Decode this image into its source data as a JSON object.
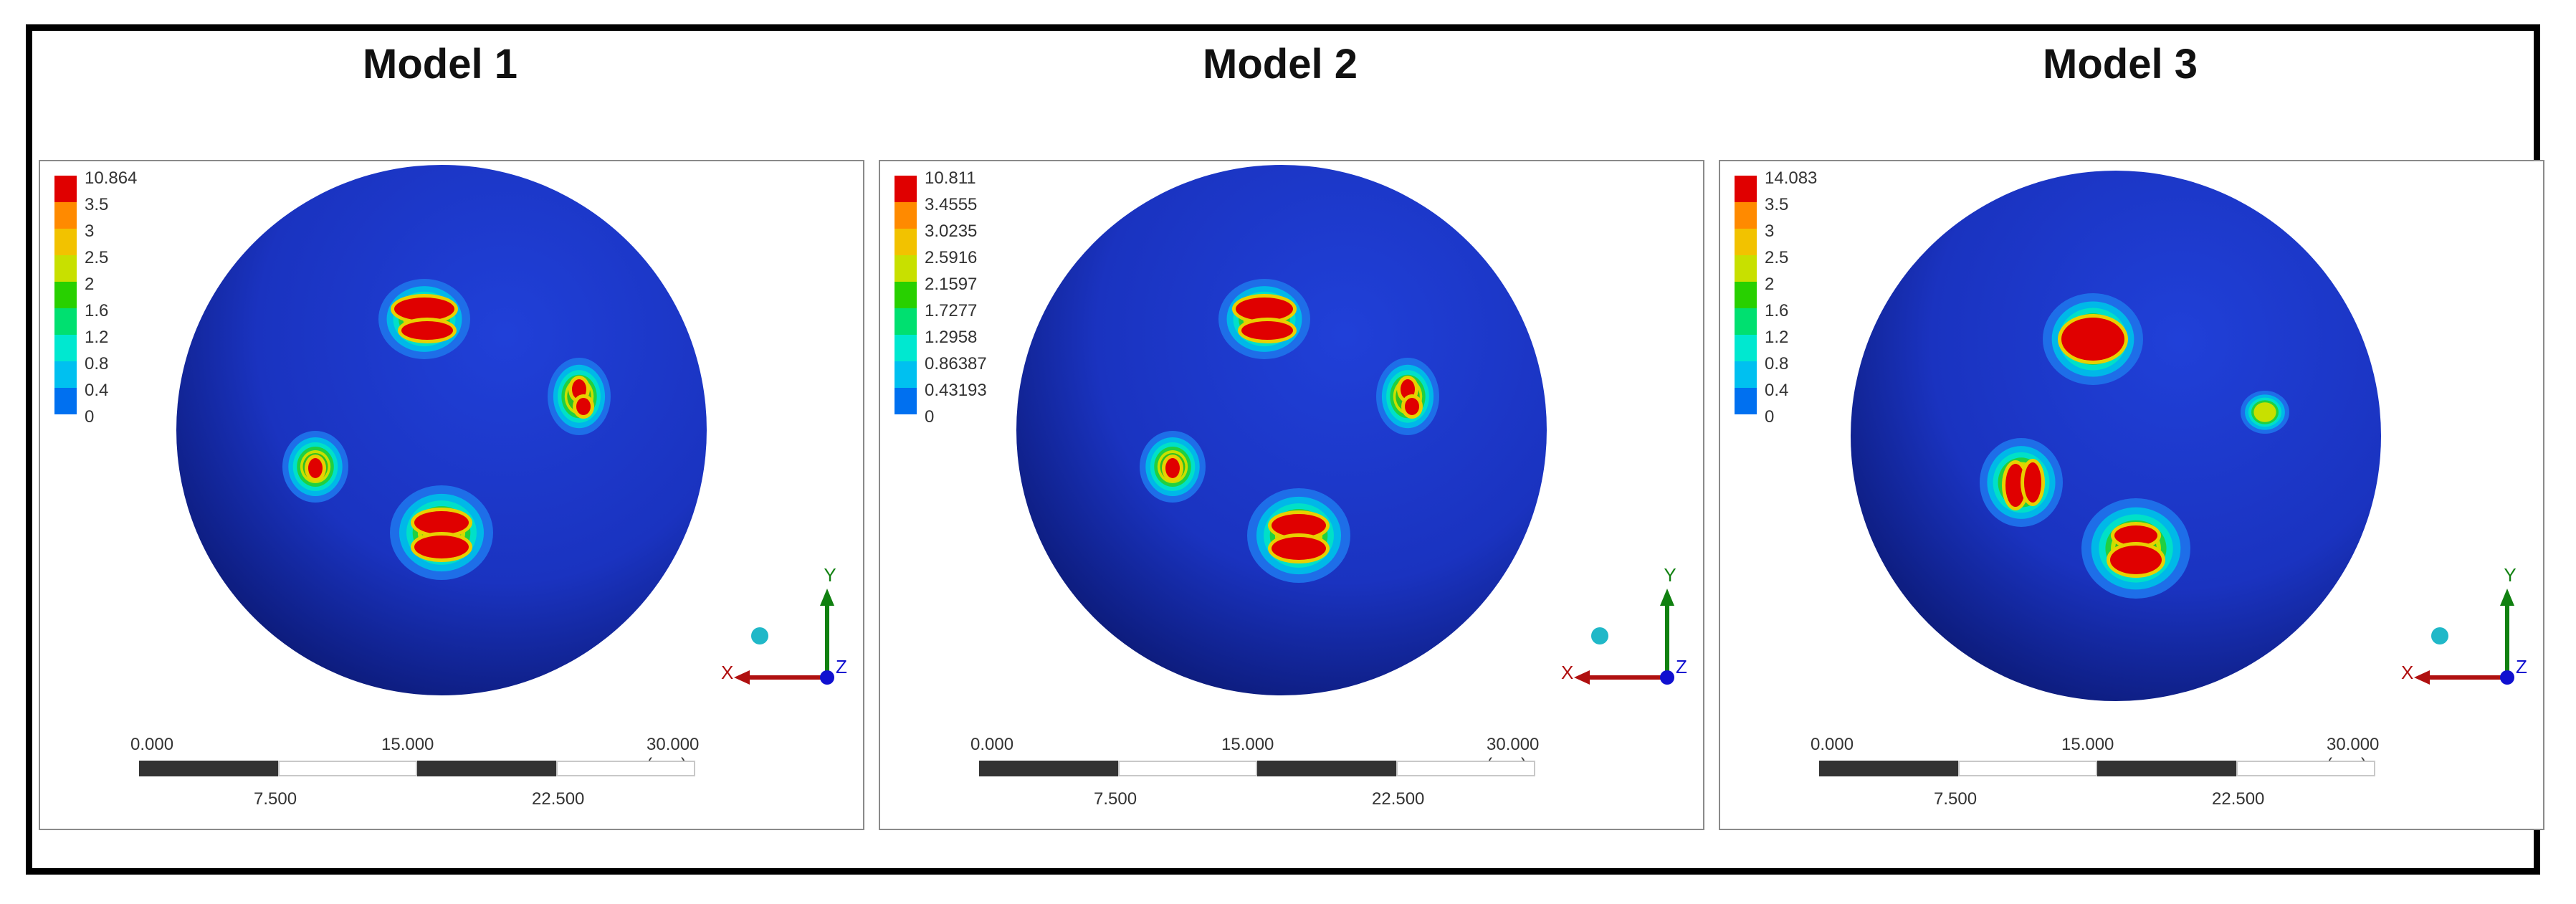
{
  "figure": {
    "models": [
      {
        "title": "Model 1",
        "legend": [
          "10.864",
          "3.5",
          "3",
          "2.5",
          "2",
          "1.6",
          "1.2",
          "0.8",
          "0.4",
          "0"
        ]
      },
      {
        "title": "Model 2",
        "legend": [
          "10.811",
          "3.4555",
          "3.0235",
          "2.5916",
          "2.1597",
          "1.7277",
          "1.2958",
          "0.86387",
          "0.43193",
          "0"
        ]
      },
      {
        "title": "Model 3",
        "legend": [
          "14.083",
          "3.5",
          "3",
          "2.5",
          "2",
          "1.6",
          "1.2",
          "0.8",
          "0.4",
          "0"
        ]
      }
    ],
    "legend_colors": [
      "#e00000",
      "#ff8a00",
      "#f2c200",
      "#c8e000",
      "#28d000",
      "#00e070",
      "#00e8d0",
      "#00c0f0",
      "#0070f0",
      "#0018e8"
    ],
    "scale_bar": {
      "top_labels": [
        "0.000",
        "15.000",
        "30.000 (mm)"
      ],
      "bottom_labels": [
        "7.500",
        "22.500"
      ]
    },
    "axes": {
      "x": "X",
      "y": "Y",
      "z": "Z"
    },
    "colors": {
      "sphere": "#1a33c0",
      "sphere_dark": "#06105a",
      "x_axis": "#b01010",
      "y_axis": "#108010",
      "z_axis": "#1010d0"
    }
  }
}
